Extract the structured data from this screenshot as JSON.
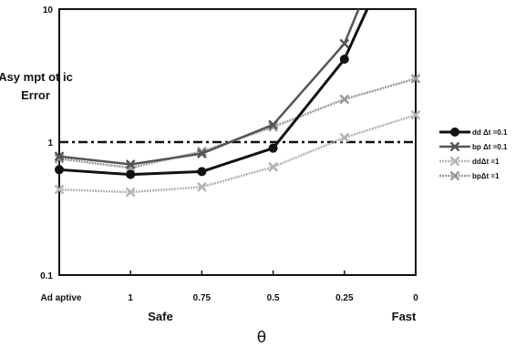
{
  "chart_data": {
    "type": "line",
    "title": "",
    "xlabel": "θ",
    "ylabel": [
      "Asy mpt ot ic",
      "Error"
    ],
    "x_end_labels": {
      "left": "Safe",
      "right": "Fast"
    },
    "categories": [
      "Ad aptive",
      "1",
      "0.75",
      "0.5",
      "0.25",
      "0"
    ],
    "y_scale": "log",
    "ylim": [
      0.1,
      10
    ],
    "y_ticks": [
      0.1,
      1,
      10
    ],
    "y_tick_labels": [
      "0.1",
      "1",
      "10"
    ],
    "grid": false,
    "legend_position": "right",
    "reference_line": {
      "y": 1,
      "style": "dash-dot"
    },
    "series": [
      {
        "name": "dd Δt =0.1",
        "color": "#111111",
        "marker": "circle",
        "values": [
          0.62,
          0.57,
          0.6,
          0.9,
          4.2,
          10
        ]
      },
      {
        "name": "bp Δt =0.1",
        "color": "#555555",
        "marker": "x",
        "values": [
          0.78,
          0.68,
          0.82,
          1.35,
          5.5,
          10
        ]
      },
      {
        "name": "ddΔt =1",
        "color": "#b5b5b5",
        "marker": "x",
        "values": [
          0.44,
          0.42,
          0.46,
          0.65,
          1.08,
          1.6
        ]
      },
      {
        "name": "bpΔt =1",
        "color": "#999999",
        "marker": "x",
        "values": [
          0.75,
          0.64,
          0.85,
          1.3,
          2.1,
          3.0
        ]
      }
    ],
    "series_x_end": [
      5,
      5,
      5,
      5
    ],
    "x_end_override": [
      4.32,
      4.2,
      null,
      null
    ]
  }
}
